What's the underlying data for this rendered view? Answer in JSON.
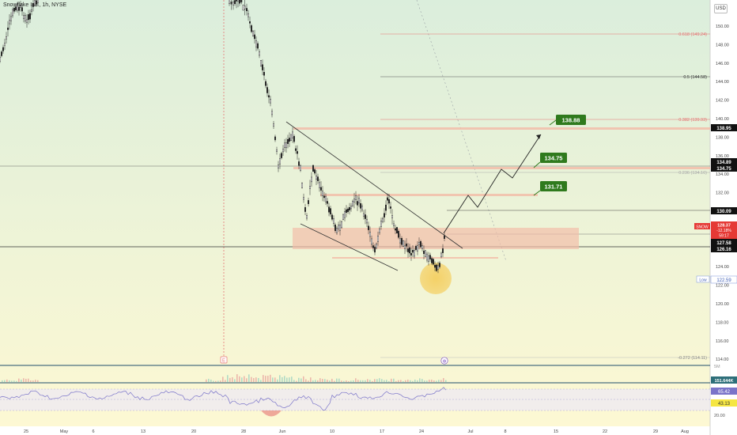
{
  "header": {
    "symbol_title": "Snowflake Inc., 1h, NYSE",
    "currency_label": "USD"
  },
  "colors": {
    "background_top": "#dbeedc",
    "background_bottom": "#fdf8d3",
    "candle": "#222222",
    "rsi_line": "#7a74c9",
    "target_label": "#2f7a1d",
    "price_tag_red": "#e53935",
    "zone_fill": "#f2bda9",
    "highlight_circle": "#f5c542"
  },
  "price_axis": {
    "ticks": [
      "150.00",
      "148.00",
      "146.00",
      "144.00",
      "142.00",
      "140.00",
      "138.00",
      "136.00",
      "134.00",
      "132.00",
      "130.00",
      "128.00",
      "126.00",
      "124.00",
      "122.00",
      "120.00",
      "118.00",
      "116.00",
      "114.00"
    ]
  },
  "tags": {
    "t13895": "138.95",
    "t13489": "134.89",
    "t13475": "134.75",
    "t13009": "130.09",
    "t12758": "127.58",
    "t12616": "126.16",
    "snow_label": "SNOW",
    "snow_price": "128.37",
    "snow_change": "-12.18%",
    "snow_time": "59:17",
    "low_label": "Low",
    "low_value": "122.59",
    "volume_value": "151.644K",
    "rsi_value1": "65.42",
    "rsi_value2": "43.13",
    "vol_axis_label": "5M",
    "rsi_axis_label": "20.00"
  },
  "fib_levels": {
    "f0618": "0.618 (149.24)",
    "f05": "0.5 (144.58)",
    "f0382": "0.382 (139.93)",
    "f0236": "0.236 (134.16)",
    "fm0272": "-0.272 (114.11)"
  },
  "targets": [
    "138.88",
    "134.75",
    "131.71"
  ],
  "time_axis": {
    "ticks": [
      "25",
      "May",
      "6",
      "13",
      "20",
      "28",
      "Jun",
      "10",
      "17",
      "24",
      "Jul",
      "8",
      "15",
      "22",
      "29",
      "Aug"
    ]
  },
  "markers": {
    "earnings": "E",
    "split": "⊕"
  }
}
